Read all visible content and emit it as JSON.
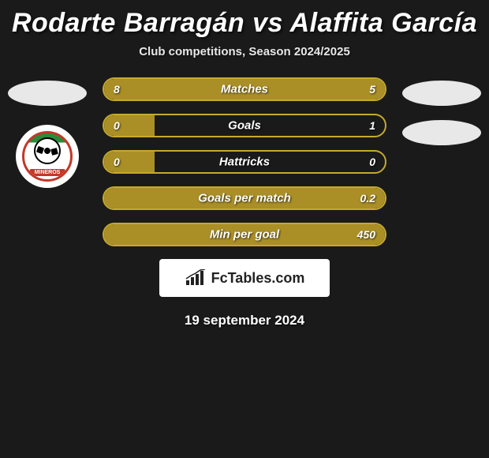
{
  "title": "Rodarte Barragán vs Alaffita García",
  "subtitle": "Club competitions, Season 2024/2025",
  "date": "19 september 2024",
  "logo_text": "FcTables.com",
  "badge_text": "MINEROS",
  "colors": {
    "background": "#1a1a1a",
    "bar_border": "#c5a92e",
    "bar_fill": "#aa8f27",
    "text": "#ffffff",
    "photo_placeholder": "#e8e8e8",
    "logo_bg": "#ffffff",
    "badge_border": "#c0392b",
    "badge_top": "#2a8a3a"
  },
  "bars": [
    {
      "label": "Matches",
      "left": "8",
      "right": "5",
      "fill_left_pct": 100,
      "fill_right_pct": 0
    },
    {
      "label": "Goals",
      "left": "0",
      "right": "1",
      "fill_left_pct": 18,
      "fill_right_pct": 0
    },
    {
      "label": "Hattricks",
      "left": "0",
      "right": "0",
      "fill_left_pct": 18,
      "fill_right_pct": 0
    },
    {
      "label": "Goals per match",
      "left": "",
      "right": "0.2",
      "fill_left_pct": 0,
      "fill_right_pct": 100
    },
    {
      "label": "Min per goal",
      "left": "",
      "right": "450",
      "fill_left_pct": 0,
      "fill_right_pct": 100
    }
  ]
}
